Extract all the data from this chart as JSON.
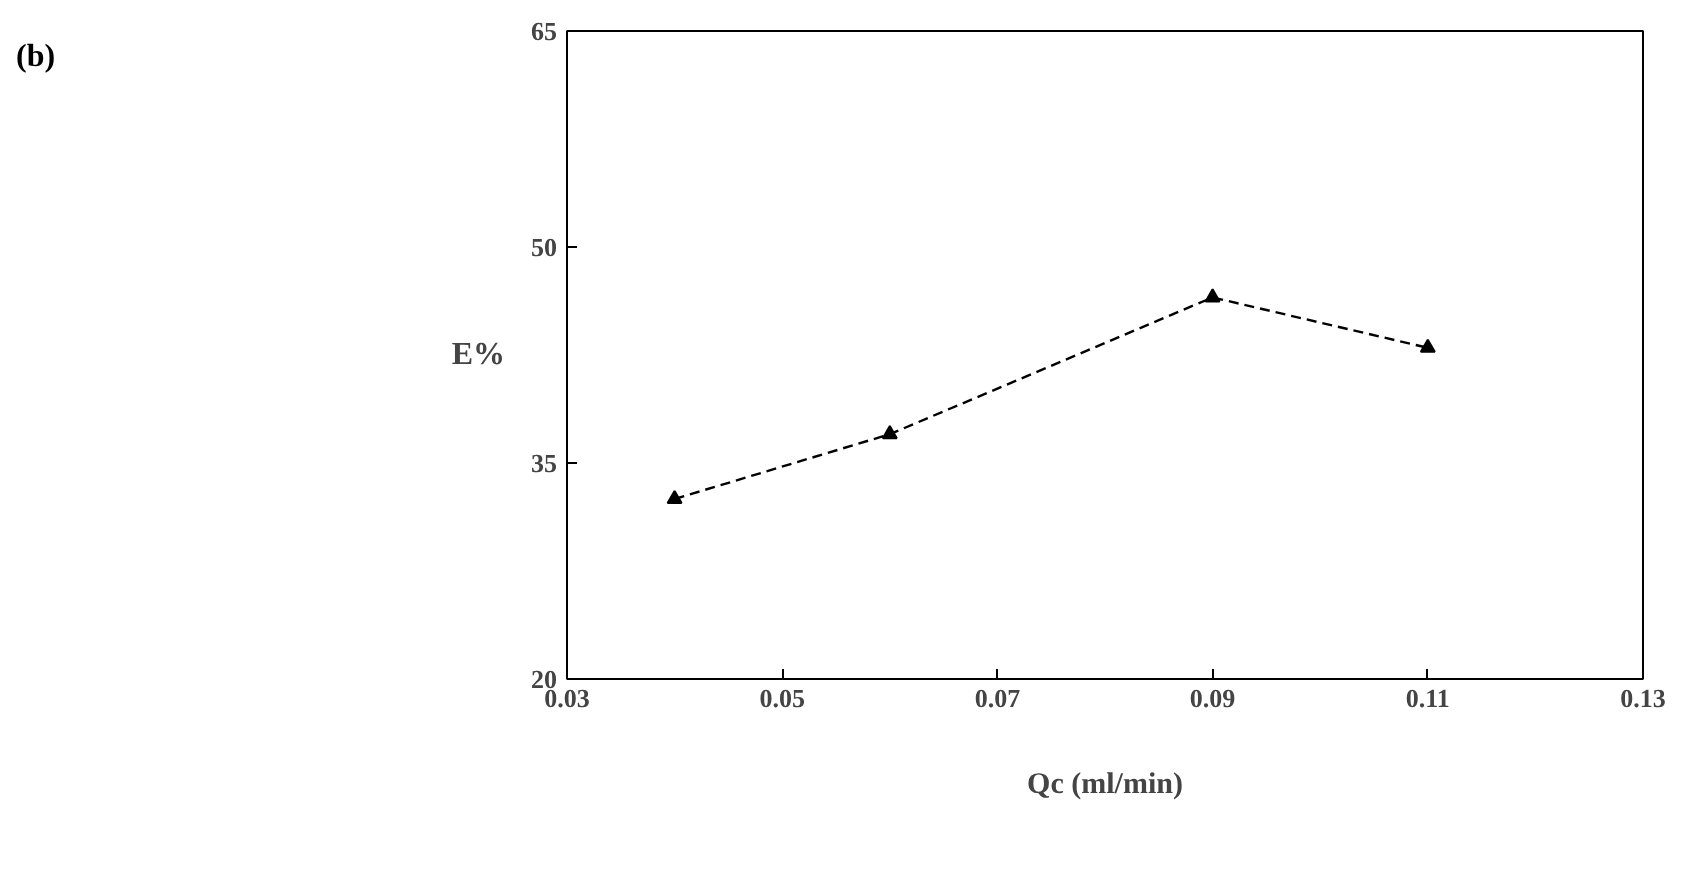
{
  "chart_data": {
    "type": "line",
    "title": "(b)",
    "xlabel": "Qc (ml/min)",
    "ylabel": "E%",
    "x": [
      0.04,
      0.06,
      0.09,
      0.11
    ],
    "series": [
      {
        "color": "#000000",
        "values": [
          32.5,
          37,
          46.5,
          43
        ]
      }
    ],
    "xlim": [
      0.03,
      0.13
    ],
    "xticks": [
      {
        "value": 0.03,
        "label": "0.03"
      },
      {
        "value": 0.05,
        "label": "0.05"
      },
      {
        "value": 0.07,
        "label": "0.07"
      },
      {
        "value": 0.09,
        "label": "0.09"
      },
      {
        "value": 0.11,
        "label": "0.11"
      },
      {
        "value": 0.13,
        "label": "0.13"
      }
    ],
    "ylim": [
      20,
      65
    ],
    "yticks": [
      20,
      35,
      50,
      65
    ],
    "grid": false,
    "marker": "triangle",
    "line_style": "dashed"
  }
}
